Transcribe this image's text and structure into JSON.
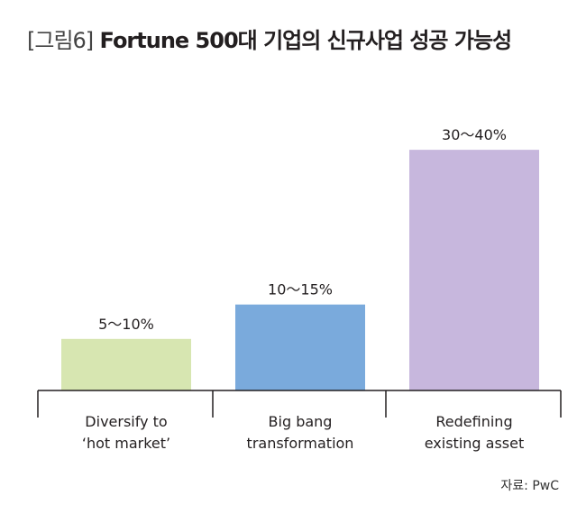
{
  "figure": {
    "tag": "[그림6]",
    "title": "Fortune 500대 기업의 신규사업 성공 가능성"
  },
  "source": "자료: PwC",
  "chart_data": {
    "type": "bar",
    "categories": [
      [
        "Diversify to",
        "‘hot market’"
      ],
      [
        "Big bang",
        "transformation"
      ],
      [
        "Redefining",
        "existing asset"
      ]
    ],
    "ranges": [
      [
        5,
        10
      ],
      [
        10,
        15
      ],
      [
        30,
        40
      ]
    ],
    "values": [
      7.5,
      12.5,
      35
    ],
    "data_labels": [
      "5～10%",
      "10～15%",
      "30～40%"
    ],
    "colors": [
      "#d7e6b1",
      "#7aaadc",
      "#c7b7dd"
    ],
    "unit": "%",
    "ylim": [
      0,
      40
    ],
    "grid": false,
    "legend": "none"
  }
}
